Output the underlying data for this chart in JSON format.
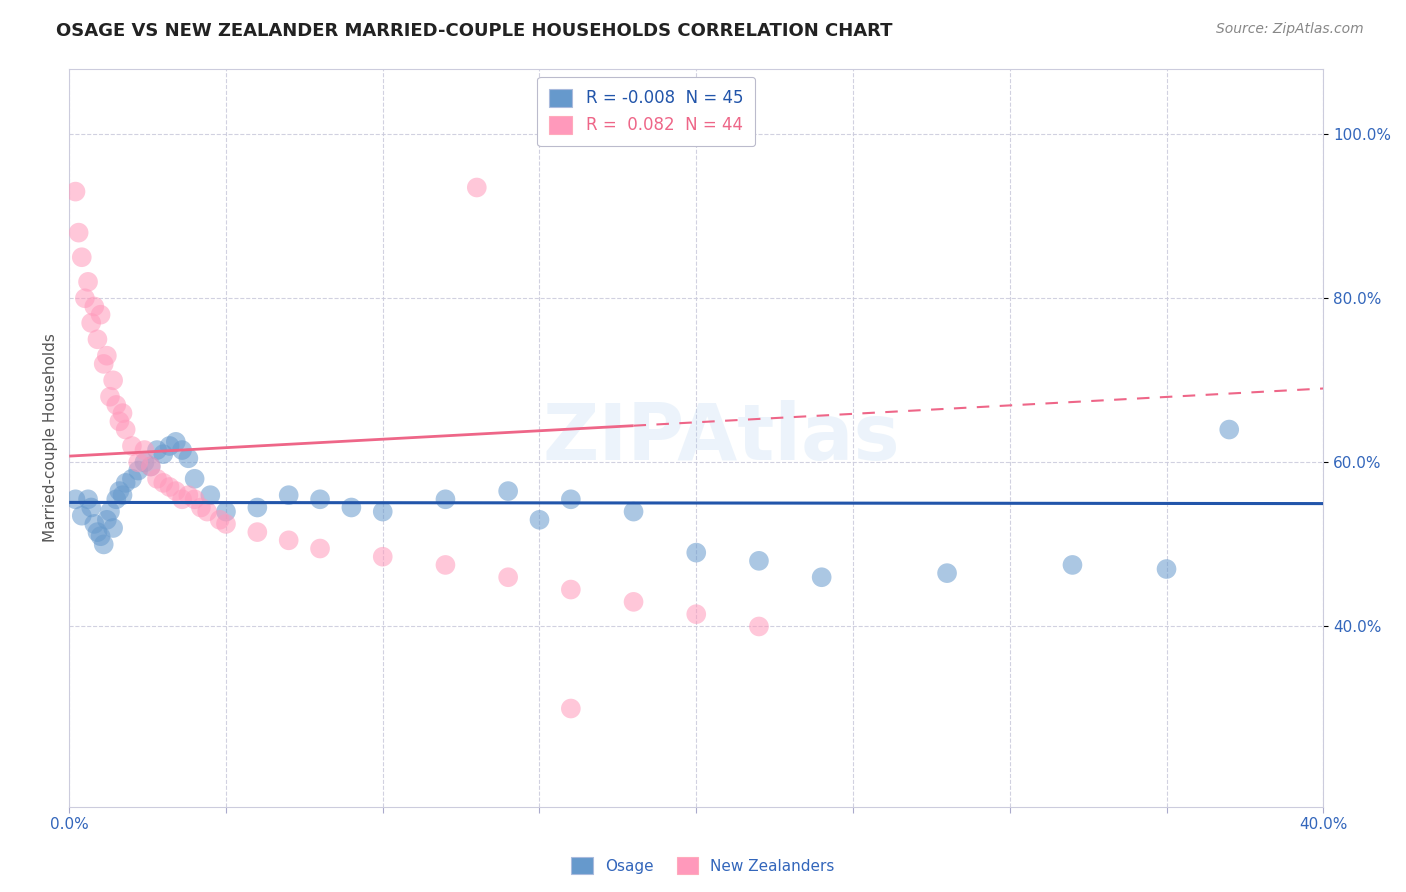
{
  "title": "OSAGE VS NEW ZEALANDER MARRIED-COUPLE HOUSEHOLDS CORRELATION CHART",
  "source": "Source: ZipAtlas.com",
  "ylabel": "Married-couple Households",
  "xlim": [
    0.0,
    0.4
  ],
  "ylim": [
    0.18,
    1.08
  ],
  "yticks": [
    0.4,
    0.6,
    0.8,
    1.0
  ],
  "ytick_labels": [
    "40.0%",
    "60.0%",
    "80.0%",
    "100.0%"
  ],
  "xticks": [
    0.0,
    0.05,
    0.1,
    0.15,
    0.2,
    0.25,
    0.3,
    0.35,
    0.4
  ],
  "xtick_labels": [
    "0.0%",
    "",
    "",
    "",
    "",
    "",
    "",
    "",
    "40.0%"
  ],
  "R_osage": -0.008,
  "N_osage": 45,
  "R_nz": 0.082,
  "N_nz": 44,
  "watermark": "ZIPAtlas",
  "blue_color": "#6699CC",
  "pink_color": "#FF99BB",
  "blue_line_color": "#2255AA",
  "pink_line_color": "#EE6688",
  "osage_points": [
    [
      0.002,
      0.555
    ],
    [
      0.004,
      0.535
    ],
    [
      0.006,
      0.555
    ],
    [
      0.007,
      0.545
    ],
    [
      0.008,
      0.525
    ],
    [
      0.009,
      0.515
    ],
    [
      0.01,
      0.51
    ],
    [
      0.011,
      0.5
    ],
    [
      0.012,
      0.53
    ],
    [
      0.013,
      0.54
    ],
    [
      0.014,
      0.52
    ],
    [
      0.015,
      0.555
    ],
    [
      0.016,
      0.565
    ],
    [
      0.017,
      0.56
    ],
    [
      0.018,
      0.575
    ],
    [
      0.02,
      0.58
    ],
    [
      0.022,
      0.59
    ],
    [
      0.024,
      0.6
    ],
    [
      0.026,
      0.595
    ],
    [
      0.028,
      0.615
    ],
    [
      0.03,
      0.61
    ],
    [
      0.032,
      0.62
    ],
    [
      0.034,
      0.625
    ],
    [
      0.036,
      0.615
    ],
    [
      0.038,
      0.605
    ],
    [
      0.04,
      0.58
    ],
    [
      0.045,
      0.56
    ],
    [
      0.05,
      0.54
    ],
    [
      0.06,
      0.545
    ],
    [
      0.07,
      0.56
    ],
    [
      0.08,
      0.555
    ],
    [
      0.09,
      0.545
    ],
    [
      0.1,
      0.54
    ],
    [
      0.12,
      0.555
    ],
    [
      0.14,
      0.565
    ],
    [
      0.15,
      0.53
    ],
    [
      0.16,
      0.555
    ],
    [
      0.18,
      0.54
    ],
    [
      0.2,
      0.49
    ],
    [
      0.22,
      0.48
    ],
    [
      0.24,
      0.46
    ],
    [
      0.28,
      0.465
    ],
    [
      0.32,
      0.475
    ],
    [
      0.35,
      0.47
    ],
    [
      0.37,
      0.64
    ]
  ],
  "nz_points": [
    [
      0.002,
      0.93
    ],
    [
      0.003,
      0.88
    ],
    [
      0.004,
      0.85
    ],
    [
      0.005,
      0.8
    ],
    [
      0.006,
      0.82
    ],
    [
      0.007,
      0.77
    ],
    [
      0.008,
      0.79
    ],
    [
      0.009,
      0.75
    ],
    [
      0.01,
      0.78
    ],
    [
      0.011,
      0.72
    ],
    [
      0.012,
      0.73
    ],
    [
      0.013,
      0.68
    ],
    [
      0.014,
      0.7
    ],
    [
      0.015,
      0.67
    ],
    [
      0.016,
      0.65
    ],
    [
      0.017,
      0.66
    ],
    [
      0.018,
      0.64
    ],
    [
      0.02,
      0.62
    ],
    [
      0.022,
      0.6
    ],
    [
      0.024,
      0.615
    ],
    [
      0.026,
      0.595
    ],
    [
      0.028,
      0.58
    ],
    [
      0.03,
      0.575
    ],
    [
      0.032,
      0.57
    ],
    [
      0.034,
      0.565
    ],
    [
      0.036,
      0.555
    ],
    [
      0.038,
      0.56
    ],
    [
      0.04,
      0.555
    ],
    [
      0.042,
      0.545
    ],
    [
      0.044,
      0.54
    ],
    [
      0.048,
      0.53
    ],
    [
      0.05,
      0.525
    ],
    [
      0.06,
      0.515
    ],
    [
      0.07,
      0.505
    ],
    [
      0.08,
      0.495
    ],
    [
      0.1,
      0.485
    ],
    [
      0.12,
      0.475
    ],
    [
      0.14,
      0.46
    ],
    [
      0.16,
      0.445
    ],
    [
      0.18,
      0.43
    ],
    [
      0.2,
      0.415
    ],
    [
      0.22,
      0.4
    ],
    [
      0.13,
      0.935
    ],
    [
      0.16,
      0.3
    ]
  ]
}
